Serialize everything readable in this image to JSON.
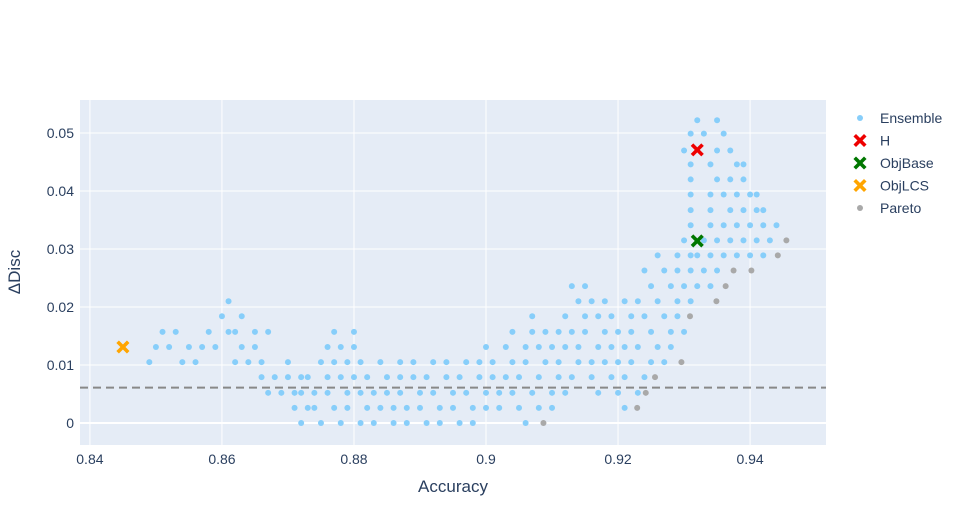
{
  "chart_data": {
    "type": "scatter",
    "xlabel": "Accuracy",
    "ylabel": "ΔDisc",
    "xlim": [
      0.8385,
      0.9515
    ],
    "ylim": [
      -0.0038,
      0.0557
    ],
    "x_ticks": [
      0.84,
      0.86,
      0.88,
      0.9,
      0.92,
      0.94
    ],
    "x_tick_labels": [
      "0.84",
      "0.86",
      "0.88",
      "0.9",
      "0.92",
      "0.94"
    ],
    "y_ticks": [
      0,
      0.01,
      0.02,
      0.03,
      0.04,
      0.05
    ],
    "y_tick_labels": [
      "0",
      "0.01",
      "0.02",
      "0.03",
      "0.04",
      "0.05"
    ],
    "grid": true,
    "plot_background": "#e5ecf6",
    "legend_position": "top-right",
    "reference_line": {
      "y": 0.0061,
      "style": "dashed",
      "color": "#888888"
    },
    "series": [
      {
        "name": "Ensemble",
        "marker": "circle",
        "color": "#87cefa",
        "points": [
          [
            0.849,
            0.0105
          ],
          [
            0.85,
            0.0131
          ],
          [
            0.851,
            0.0157
          ],
          [
            0.852,
            0.0131
          ],
          [
            0.853,
            0.0157
          ],
          [
            0.854,
            0.0105
          ],
          [
            0.855,
            0.0131
          ],
          [
            0.856,
            0.0105
          ],
          [
            0.857,
            0.0131
          ],
          [
            0.858,
            0.0157
          ],
          [
            0.859,
            0.0131
          ],
          [
            0.86,
            0.0184
          ],
          [
            0.861,
            0.0157
          ],
          [
            0.861,
            0.021
          ],
          [
            0.862,
            0.0105
          ],
          [
            0.862,
            0.0157
          ],
          [
            0.863,
            0.0184
          ],
          [
            0.863,
            0.0131
          ],
          [
            0.864,
            0.0105
          ],
          [
            0.865,
            0.0131
          ],
          [
            0.865,
            0.0157
          ],
          [
            0.866,
            0.0079
          ],
          [
            0.866,
            0.0105
          ],
          [
            0.867,
            0.0052
          ],
          [
            0.867,
            0.0157
          ],
          [
            0.868,
            0.0079
          ],
          [
            0.869,
            0.0052
          ],
          [
            0.87,
            0.0105
          ],
          [
            0.87,
            0.0079
          ],
          [
            0.871,
            0.0052
          ],
          [
            0.871,
            0.0026
          ],
          [
            0.872,
            0.0079
          ],
          [
            0.872,
            0.0052
          ],
          [
            0.872,
            0.0
          ],
          [
            0.873,
            0.0026
          ],
          [
            0.873,
            0.0079
          ],
          [
            0.874,
            0.0052
          ],
          [
            0.874,
            0.0026
          ],
          [
            0.875,
            0.0105
          ],
          [
            0.875,
            0.0
          ],
          [
            0.876,
            0.0079
          ],
          [
            0.876,
            0.0052
          ],
          [
            0.876,
            0.0131
          ],
          [
            0.877,
            0.0026
          ],
          [
            0.877,
            0.0105
          ],
          [
            0.877,
            0.0157
          ],
          [
            0.878,
            0.0079
          ],
          [
            0.878,
            0.0131
          ],
          [
            0.878,
            0.0
          ],
          [
            0.879,
            0.0052
          ],
          [
            0.879,
            0.0026
          ],
          [
            0.879,
            0.0105
          ],
          [
            0.88,
            0.0157
          ],
          [
            0.88,
            0.0131
          ],
          [
            0.88,
            0.0079
          ],
          [
            0.881,
            0.0052
          ],
          [
            0.881,
            0.0
          ],
          [
            0.881,
            0.0105
          ],
          [
            0.882,
            0.0026
          ],
          [
            0.882,
            0.0079
          ],
          [
            0.883,
            0.0052
          ],
          [
            0.883,
            0.0
          ],
          [
            0.884,
            0.0026
          ],
          [
            0.884,
            0.0105
          ],
          [
            0.885,
            0.0079
          ],
          [
            0.885,
            0.0052
          ],
          [
            0.886,
            0.0
          ],
          [
            0.886,
            0.0026
          ],
          [
            0.887,
            0.0105
          ],
          [
            0.887,
            0.0079
          ],
          [
            0.887,
            0.0052
          ],
          [
            0.888,
            0.0026
          ],
          [
            0.888,
            0.0
          ],
          [
            0.889,
            0.0079
          ],
          [
            0.889,
            0.0105
          ],
          [
            0.89,
            0.0052
          ],
          [
            0.89,
            0.0026
          ],
          [
            0.891,
            0.0
          ],
          [
            0.891,
            0.0079
          ],
          [
            0.892,
            0.0105
          ],
          [
            0.892,
            0.0052
          ],
          [
            0.893,
            0.0026
          ],
          [
            0.893,
            0.0
          ],
          [
            0.894,
            0.0079
          ],
          [
            0.894,
            0.0105
          ],
          [
            0.895,
            0.0052
          ],
          [
            0.895,
            0.0026
          ],
          [
            0.896,
            0.0
          ],
          [
            0.896,
            0.0079
          ],
          [
            0.897,
            0.0105
          ],
          [
            0.897,
            0.0052
          ],
          [
            0.898,
            0.0026
          ],
          [
            0.898,
            0.0
          ],
          [
            0.899,
            0.0079
          ],
          [
            0.899,
            0.0105
          ],
          [
            0.9,
            0.0052
          ],
          [
            0.9,
            0.0131
          ],
          [
            0.9,
            0.0026
          ],
          [
            0.901,
            0.0079
          ],
          [
            0.901,
            0.0105
          ],
          [
            0.902,
            0.0052
          ],
          [
            0.902,
            0.0026
          ],
          [
            0.903,
            0.0131
          ],
          [
            0.903,
            0.0079
          ],
          [
            0.904,
            0.0105
          ],
          [
            0.904,
            0.0157
          ],
          [
            0.904,
            0.0052
          ],
          [
            0.905,
            0.0026
          ],
          [
            0.905,
            0.0079
          ],
          [
            0.906,
            0.0131
          ],
          [
            0.906,
            0.0105
          ],
          [
            0.906,
            0.0
          ],
          [
            0.907,
            0.0157
          ],
          [
            0.907,
            0.0052
          ],
          [
            0.907,
            0.0184
          ],
          [
            0.908,
            0.0079
          ],
          [
            0.908,
            0.0131
          ],
          [
            0.908,
            0.0026
          ],
          [
            0.909,
            0.0105
          ],
          [
            0.909,
            0.0157
          ],
          [
            0.91,
            0.0052
          ],
          [
            0.91,
            0.0131
          ],
          [
            0.91,
            0.0026
          ],
          [
            0.911,
            0.0079
          ],
          [
            0.911,
            0.0157
          ],
          [
            0.911,
            0.0105
          ],
          [
            0.912,
            0.0184
          ],
          [
            0.912,
            0.0131
          ],
          [
            0.912,
            0.0052
          ],
          [
            0.913,
            0.0236
          ],
          [
            0.913,
            0.0157
          ],
          [
            0.913,
            0.0079
          ],
          [
            0.914,
            0.0105
          ],
          [
            0.914,
            0.021
          ],
          [
            0.914,
            0.0131
          ],
          [
            0.915,
            0.0236
          ],
          [
            0.915,
            0.0157
          ],
          [
            0.915,
            0.0184
          ],
          [
            0.916,
            0.0079
          ],
          [
            0.916,
            0.0105
          ],
          [
            0.916,
            0.021
          ],
          [
            0.917,
            0.0131
          ],
          [
            0.917,
            0.0184
          ],
          [
            0.917,
            0.0052
          ],
          [
            0.918,
            0.0157
          ],
          [
            0.918,
            0.021
          ],
          [
            0.918,
            0.0105
          ],
          [
            0.919,
            0.0079
          ],
          [
            0.919,
            0.0131
          ],
          [
            0.919,
            0.0184
          ],
          [
            0.92,
            0.0157
          ],
          [
            0.92,
            0.0105
          ],
          [
            0.92,
            0.0052
          ],
          [
            0.921,
            0.021
          ],
          [
            0.921,
            0.0131
          ],
          [
            0.921,
            0.0079
          ],
          [
            0.921,
            0.0026
          ],
          [
            0.922,
            0.0184
          ],
          [
            0.922,
            0.0157
          ],
          [
            0.922,
            0.0105
          ],
          [
            0.923,
            0.0131
          ],
          [
            0.923,
            0.021
          ],
          [
            0.923,
            0.0052
          ],
          [
            0.924,
            0.0263
          ],
          [
            0.924,
            0.0184
          ],
          [
            0.924,
            0.0079
          ],
          [
            0.925,
            0.0157
          ],
          [
            0.925,
            0.0105
          ],
          [
            0.925,
            0.0236
          ],
          [
            0.926,
            0.021
          ],
          [
            0.926,
            0.0131
          ],
          [
            0.926,
            0.0289
          ],
          [
            0.927,
            0.0263
          ],
          [
            0.927,
            0.0184
          ],
          [
            0.927,
            0.0105
          ],
          [
            0.928,
            0.0236
          ],
          [
            0.928,
            0.0157
          ],
          [
            0.928,
            0.0131
          ],
          [
            0.929,
            0.0289
          ],
          [
            0.929,
            0.021
          ],
          [
            0.929,
            0.0184
          ],
          [
            0.929,
            0.0263
          ],
          [
            0.93,
            0.0236
          ],
          [
            0.93,
            0.0315
          ],
          [
            0.93,
            0.0157
          ],
          [
            0.93,
            0.047
          ],
          [
            0.931,
            0.0289
          ],
          [
            0.931,
            0.0263
          ],
          [
            0.931,
            0.0499
          ],
          [
            0.931,
            0.0446
          ],
          [
            0.931,
            0.042
          ],
          [
            0.931,
            0.0394
          ],
          [
            0.931,
            0.0367
          ],
          [
            0.931,
            0.0341
          ],
          [
            0.931,
            0.021
          ],
          [
            0.932,
            0.0236
          ],
          [
            0.932,
            0.0289
          ],
          [
            0.932,
            0.0522
          ],
          [
            0.933,
            0.0499
          ],
          [
            0.933,
            0.0263
          ],
          [
            0.933,
            0.0315
          ],
          [
            0.934,
            0.0446
          ],
          [
            0.934,
            0.0394
          ],
          [
            0.934,
            0.0367
          ],
          [
            0.934,
            0.0341
          ],
          [
            0.934,
            0.0289
          ],
          [
            0.934,
            0.0236
          ],
          [
            0.935,
            0.0522
          ],
          [
            0.935,
            0.047
          ],
          [
            0.935,
            0.042
          ],
          [
            0.935,
            0.0315
          ],
          [
            0.935,
            0.0263
          ],
          [
            0.936,
            0.0499
          ],
          [
            0.936,
            0.0394
          ],
          [
            0.936,
            0.0341
          ],
          [
            0.936,
            0.0289
          ],
          [
            0.937,
            0.047
          ],
          [
            0.937,
            0.042
          ],
          [
            0.937,
            0.0367
          ],
          [
            0.937,
            0.0315
          ],
          [
            0.938,
            0.0446
          ],
          [
            0.938,
            0.0394
          ],
          [
            0.938,
            0.0341
          ],
          [
            0.938,
            0.0289
          ],
          [
            0.939,
            0.042
          ],
          [
            0.939,
            0.0367
          ],
          [
            0.939,
            0.0315
          ],
          [
            0.939,
            0.0446
          ],
          [
            0.94,
            0.0394
          ],
          [
            0.94,
            0.0341
          ],
          [
            0.94,
            0.0289
          ],
          [
            0.941,
            0.0367
          ],
          [
            0.941,
            0.0315
          ],
          [
            0.941,
            0.0394
          ],
          [
            0.942,
            0.0341
          ],
          [
            0.942,
            0.0289
          ],
          [
            0.942,
            0.0367
          ],
          [
            0.943,
            0.0315
          ],
          [
            0.944,
            0.0341
          ]
        ]
      },
      {
        "name": "H",
        "marker": "x",
        "color": "#ee0000",
        "points": [
          [
            0.932,
            0.0471
          ]
        ]
      },
      {
        "name": "ObjBase",
        "marker": "x",
        "color": "#007700",
        "points": [
          [
            0.932,
            0.0314
          ]
        ]
      },
      {
        "name": "ObjLCS",
        "marker": "x",
        "color": "#ffa500",
        "points": [
          [
            0.845,
            0.0131
          ]
        ]
      },
      {
        "name": "Pareto",
        "marker": "circle",
        "color": "#a9a9a9",
        "points": [
          [
            0.9087,
            0.0
          ],
          [
            0.9229,
            0.0026
          ],
          [
            0.9242,
            0.0052
          ],
          [
            0.9256,
            0.0079
          ],
          [
            0.9296,
            0.0105
          ],
          [
            0.9309,
            0.0184
          ],
          [
            0.9349,
            0.021
          ],
          [
            0.9363,
            0.0236
          ],
          [
            0.9375,
            0.0263
          ],
          [
            0.9402,
            0.0263
          ],
          [
            0.9442,
            0.0289
          ],
          [
            0.9455,
            0.0315
          ]
        ]
      }
    ]
  }
}
